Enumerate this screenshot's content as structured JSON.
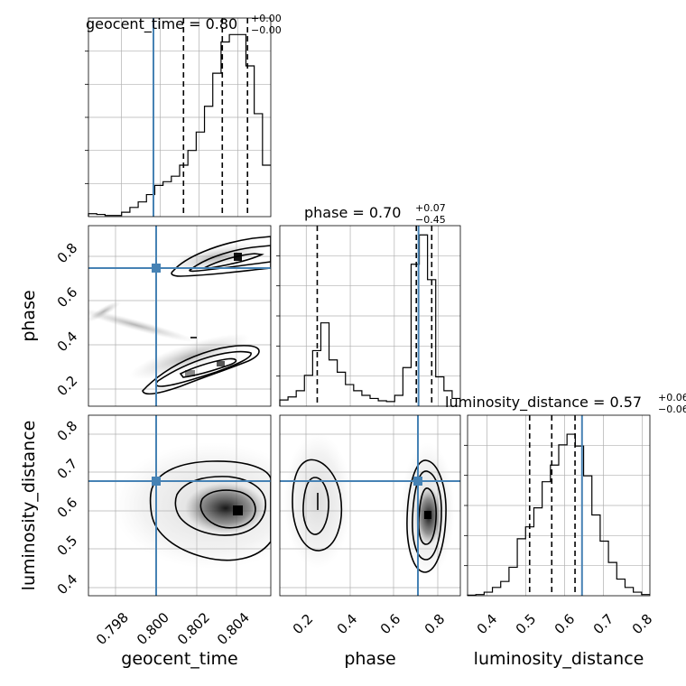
{
  "chart_data": {
    "type": "corner",
    "colors": {
      "truth": "#4682b4",
      "hist": "#000000",
      "grid": "#b0b0b0"
    },
    "parameters": [
      {
        "name": "geocent_time",
        "label": "geocent_time",
        "median": "0.80",
        "plus": "+0.00",
        "minus": "−0.00",
        "truth": 0.79965,
        "quantiles": [
          0.8012,
          0.8032,
          0.8045
        ],
        "range": [
          0.7963,
          0.8057
        ],
        "ticks": [
          0.798,
          0.8,
          0.802,
          0.804
        ],
        "tick_labels": [
          "0.798",
          "0.800",
          "0.802",
          "0.804"
        ]
      },
      {
        "name": "phase",
        "label": "phase",
        "median": "0.70",
        "plus": "+0.07",
        "minus": "−0.45",
        "truth": 0.71,
        "quantiles": [
          0.25,
          0.7,
          0.77
        ],
        "range": [
          0.08,
          0.9
        ],
        "ticks": [
          0.2,
          0.4,
          0.6,
          0.8
        ],
        "tick_labels": [
          "0.2",
          "0.4",
          "0.6",
          "0.8"
        ]
      },
      {
        "name": "luminosity_distance",
        "label": "luminosity_distance",
        "median": "0.57",
        "plus": "+0.06",
        "minus": "−0.06",
        "truth": 0.645,
        "quantiles": [
          0.51,
          0.567,
          0.627
        ],
        "range": [
          0.35,
          0.82
        ],
        "ticks": [
          0.4,
          0.5,
          0.6,
          0.7,
          0.8
        ],
        "tick_labels": [
          "0.4",
          "0.5",
          "0.6",
          "0.7",
          "0.8"
        ]
      }
    ],
    "histograms": [
      {
        "param": "geocent_time",
        "ylim": [
          0,
          54
        ],
        "values": [
          0.8,
          0.6,
          0.3,
          0.3,
          1.2,
          2.5,
          4,
          6,
          8.5,
          9.5,
          11,
          14,
          18,
          23,
          30,
          39,
          47.5,
          49.5,
          49.5,
          41,
          28,
          14
        ]
      },
      {
        "param": "phase",
        "ylim": [
          0,
          117
        ],
        "values": [
          4,
          6,
          10,
          20,
          36,
          54,
          30,
          22,
          14,
          10,
          7,
          5,
          3.5,
          3,
          7,
          25,
          92,
          111,
          82,
          19,
          10,
          5
        ]
      },
      {
        "param": "luminosity_distance",
        "ylim": [
          0,
          152
        ],
        "values": [
          0.5,
          1,
          3,
          7,
          12,
          24,
          48,
          58,
          74,
          96,
          110,
          127,
          136,
          126,
          101,
          68,
          46,
          28,
          14,
          7,
          3,
          1
        ]
      }
    ]
  }
}
